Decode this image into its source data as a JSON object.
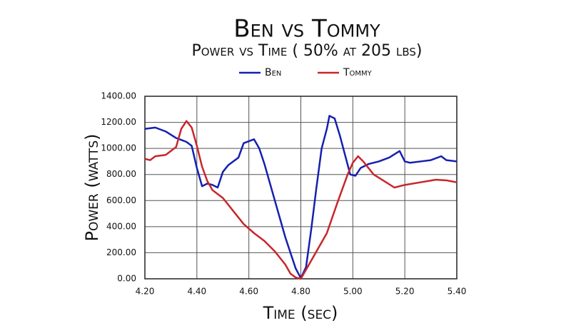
{
  "chart_data": {
    "type": "line",
    "title": "Ben vs Tommy",
    "subtitle": "Power vs Time ( 50% at 205 lbs)",
    "x_label": "Time (sec)",
    "y_label": "Power (watts)",
    "grid": true,
    "legend": "top",
    "xlim": [
      4.2,
      5.4
    ],
    "ylim": [
      0,
      1400
    ],
    "xticks": [
      {
        "value": 4.2,
        "label": "4.20"
      },
      {
        "value": 4.4,
        "label": "4.40"
      },
      {
        "value": 4.6,
        "label": "4.60"
      },
      {
        "value": 4.8,
        "label": "4.80"
      },
      {
        "value": 5.0,
        "label": "5.00"
      },
      {
        "value": 5.2,
        "label": "5.20"
      },
      {
        "value": 5.4,
        "label": "5.40"
      }
    ],
    "yticks": [
      {
        "value": 0,
        "label": "0.00"
      },
      {
        "value": 200,
        "label": "200.00"
      },
      {
        "value": 400,
        "label": "400.00"
      },
      {
        "value": 600,
        "label": "600.00"
      },
      {
        "value": 800,
        "label": "800.00"
      },
      {
        "value": 1000,
        "label": "1000.00"
      },
      {
        "value": 1200,
        "label": "1200.00"
      },
      {
        "value": 1400,
        "label": "1400.00"
      }
    ],
    "series": [
      {
        "name": "Ben",
        "color": "#1520b0",
        "x": [
          4.2,
          4.24,
          4.28,
          4.32,
          4.36,
          4.38,
          4.4,
          4.42,
          4.44,
          4.46,
          4.48,
          4.5,
          4.52,
          4.54,
          4.56,
          4.58,
          4.62,
          4.64,
          4.66,
          4.68,
          4.7,
          4.72,
          4.74,
          4.76,
          4.78,
          4.8,
          4.82,
          4.84,
          4.86,
          4.88,
          4.9,
          4.91,
          4.93,
          4.95,
          4.97,
          4.99,
          5.01,
          5.03,
          5.06,
          5.1,
          5.14,
          5.18,
          5.2,
          5.22,
          5.26,
          5.3,
          5.34,
          5.36,
          5.4
        ],
        "values": [
          1150,
          1160,
          1130,
          1080,
          1050,
          1020,
          850,
          710,
          730,
          720,
          700,
          820,
          870,
          900,
          930,
          1040,
          1070,
          1000,
          880,
          740,
          600,
          460,
          320,
          200,
          80,
          5,
          90,
          380,
          700,
          1000,
          1150,
          1250,
          1230,
          1100,
          950,
          800,
          790,
          850,
          880,
          900,
          930,
          980,
          900,
          890,
          900,
          910,
          940,
          910,
          900
        ]
      },
      {
        "name": "Tommy",
        "color": "#c8262b",
        "x": [
          4.2,
          4.22,
          4.24,
          4.28,
          4.32,
          4.34,
          4.36,
          4.38,
          4.4,
          4.42,
          4.44,
          4.46,
          4.5,
          4.54,
          4.58,
          4.62,
          4.66,
          4.7,
          4.74,
          4.76,
          4.78,
          4.8,
          4.82,
          4.86,
          4.9,
          4.94,
          4.98,
          5.0,
          5.02,
          5.04,
          5.08,
          5.12,
          5.16,
          5.2,
          5.26,
          5.32,
          5.36,
          5.4
        ],
        "values": [
          920,
          910,
          940,
          950,
          1010,
          1150,
          1210,
          1160,
          1020,
          860,
          750,
          680,
          620,
          520,
          420,
          350,
          290,
          210,
          110,
          40,
          10,
          0,
          70,
          210,
          350,
          580,
          800,
          890,
          940,
          900,
          800,
          750,
          700,
          720,
          740,
          760,
          755,
          740
        ]
      }
    ]
  }
}
